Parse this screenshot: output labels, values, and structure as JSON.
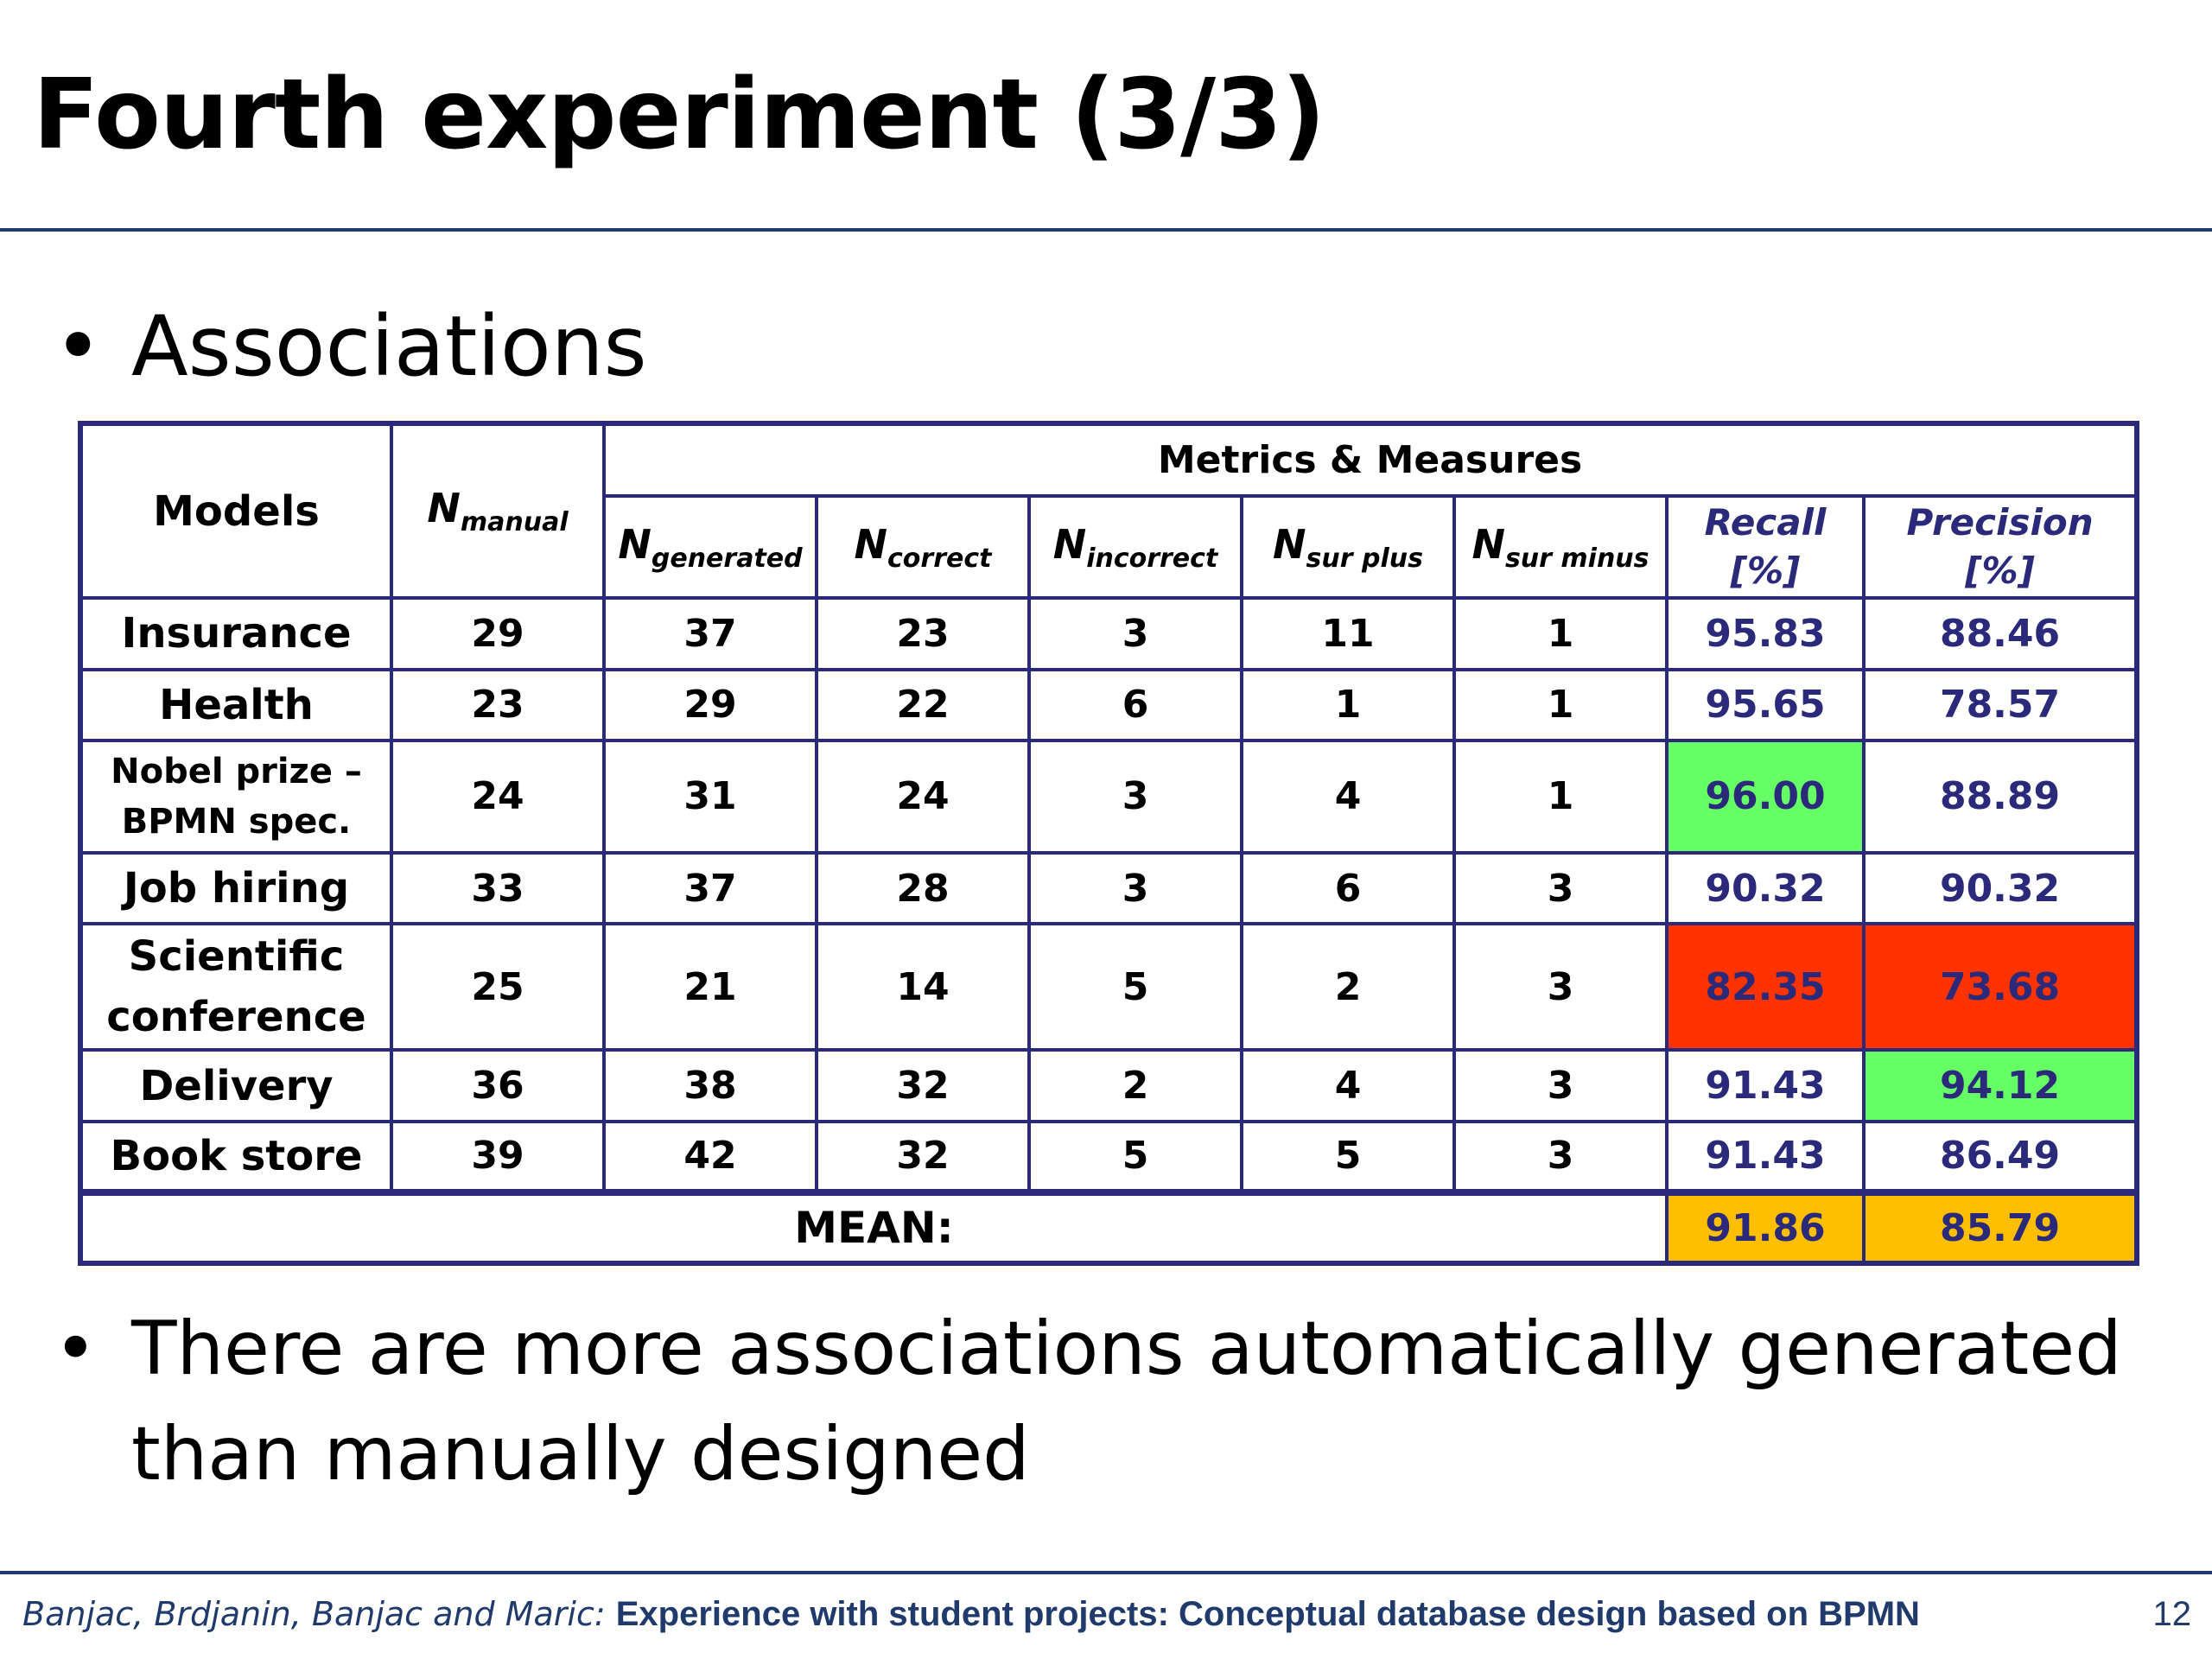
{
  "slide": {
    "title": "Fourth experiment (3/3)",
    "bullet1": "Associations",
    "bullet2_line1": "There are more associations automatically generated",
    "bullet2_line2": "than manually designed",
    "bullet_glyph": "•"
  },
  "table": {
    "headers": {
      "models": "Models",
      "n_manual": {
        "base": "N",
        "sub": "manual"
      },
      "group": "Metrics & Measures",
      "n_generated": {
        "base": "N",
        "sub": "generated"
      },
      "n_correct": {
        "base": "N",
        "sub": "correct"
      },
      "n_incorrect": {
        "base": "N",
        "sub": "incorrect"
      },
      "n_sur_plus": {
        "base": "N",
        "sub": "sur plus"
      },
      "n_sur_minus": {
        "base": "N",
        "sub": "sur minus"
      },
      "recall_line1": "Recall",
      "recall_line2": "[%]",
      "precision": "Precision [%]"
    },
    "rows": [
      {
        "model": "Insurance",
        "manual": "29",
        "generated": "37",
        "correct": "23",
        "incorrect": "3",
        "sur_plus": "11",
        "sur_minus": "1",
        "recall": "95.83",
        "precision": "88.46"
      },
      {
        "model": "Health",
        "manual": "23",
        "generated": "29",
        "correct": "22",
        "incorrect": "6",
        "sur_plus": "1",
        "sur_minus": "1",
        "recall": "95.65",
        "precision": "78.57"
      },
      {
        "model_line1": "Nobel prize –",
        "model_line2": "BPMN  spec.",
        "manual": "24",
        "generated": "31",
        "correct": "24",
        "incorrect": "3",
        "sur_plus": "4",
        "sur_minus": "1",
        "recall": "96.00",
        "precision": "88.89"
      },
      {
        "model": "Job hiring",
        "manual": "33",
        "generated": "37",
        "correct": "28",
        "incorrect": "3",
        "sur_plus": "6",
        "sur_minus": "3",
        "recall": "90.32",
        "precision": "90.32"
      },
      {
        "model_line1": "Scientific",
        "model_line2": "conference",
        "manual": "25",
        "generated": "21",
        "correct": "14",
        "incorrect": "5",
        "sur_plus": "2",
        "sur_minus": "3",
        "recall": "82.35",
        "precision": "73.68"
      },
      {
        "model": "Delivery",
        "manual": "36",
        "generated": "38",
        "correct": "32",
        "incorrect": "2",
        "sur_plus": "4",
        "sur_minus": "3",
        "recall": "91.43",
        "precision": "94.12"
      },
      {
        "model": "Book store",
        "manual": "39",
        "generated": "42",
        "correct": "32",
        "incorrect": "5",
        "sur_plus": "5",
        "sur_minus": "3",
        "recall": "91.43",
        "precision": "86.49"
      }
    ],
    "mean": {
      "label": "MEAN:",
      "recall": "91.86",
      "precision": "85.79"
    },
    "highlight_colors": {
      "best": "#66ff66",
      "worst": "#ff3300",
      "mean": "#ffbf00"
    }
  },
  "footer": {
    "authors": "Banjac, Brdjanin, Banjac and Maric:",
    "title": "Experience with student projects: Conceptual database design based on BPMN",
    "page_number": "12"
  }
}
